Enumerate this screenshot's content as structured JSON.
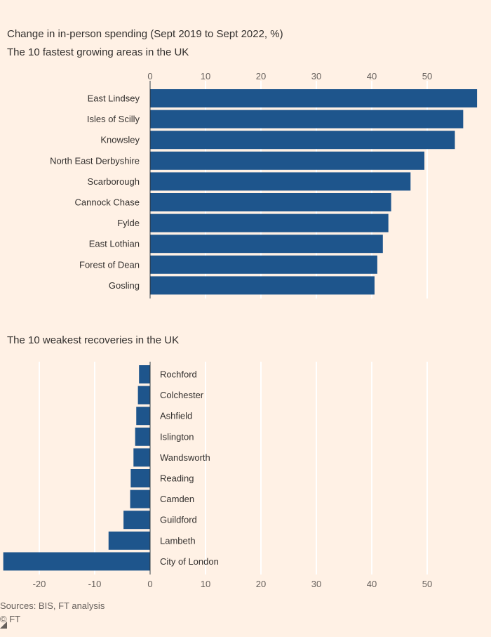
{
  "title": "Change in in-person spending (Sept 2019 to Sept 2022, %)",
  "source": "Sources: BIS, FT analysis",
  "copyright": "© FT",
  "colors": {
    "bar": "#1e558c",
    "grid": "#ffffff",
    "background": "#fff1e5"
  },
  "chart_data": [
    {
      "type": "bar",
      "orientation": "horizontal",
      "title": "The 10 fastest growing areas in the UK",
      "categories": [
        "East Lindsey",
        "Isles of Scilly",
        "Knowsley",
        "North East Derbyshire",
        "Scarborough",
        "Cannock Chase",
        "Fylde",
        "East Lothian",
        "Forest of Dean",
        "Gosling"
      ],
      "values": [
        59,
        56.5,
        55,
        49.5,
        47,
        43.5,
        43,
        42,
        41,
        40.5
      ],
      "xlim": [
        0,
        59
      ],
      "xticks": [
        0,
        10,
        20,
        30,
        40,
        50
      ],
      "tick_position": "top",
      "grid": true
    },
    {
      "type": "bar",
      "orientation": "horizontal",
      "title": "The 10 weakest recoveries in the UK",
      "categories": [
        "Rochford",
        "Colchester",
        "Ashfield",
        "Islington",
        "Wandsworth",
        "Reading",
        "Camden",
        "Guildford",
        "Lambeth",
        "City of London"
      ],
      "values": [
        -2,
        -2.2,
        -2.5,
        -2.7,
        -3,
        -3.5,
        -3.6,
        -4.8,
        -7.5,
        -26.5
      ],
      "xlim": [
        -27,
        59
      ],
      "xticks": [
        -20,
        -10,
        0,
        10,
        20,
        30,
        40,
        50
      ],
      "tick_position": "bottom",
      "grid": true
    }
  ]
}
